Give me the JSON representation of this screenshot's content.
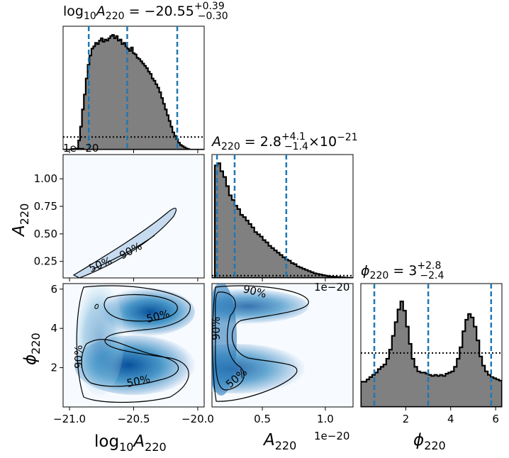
{
  "chart_data": {
    "type": "corner",
    "parameters": [
      {
        "key": "logA",
        "label_base": "log",
        "label_sub": "10",
        "label_var": "A",
        "label_varsub": "220"
      },
      {
        "key": "A",
        "label_var": "A",
        "label_varsub": "220"
      },
      {
        "key": "phi",
        "label_var": "ϕ",
        "label_varsub": "220"
      }
    ],
    "titles": {
      "logA": {
        "prefix": "log",
        "prefix_sub": "10",
        "var": "A",
        "var_sub": "220",
        "eq": " = −20.55",
        "sup": "+0.39",
        "sub": "−0.30"
      },
      "A": {
        "var": "A",
        "var_sub": "220",
        "eq": " = 2.8",
        "sup": "+4.1",
        "sub": "−1.4",
        "tail": "×10",
        "tail_sup": "−21"
      },
      "phi": {
        "var": "ϕ",
        "var_sub": "220",
        "eq": " = 3",
        "sup": "+2.8",
        "sub": "−2.4"
      }
    },
    "ranges": {
      "logA": [
        -21.05,
        -19.95
      ],
      "A": [
        0.1,
        1.22
      ],
      "phi": [
        0.0,
        6.28
      ]
    },
    "quantiles": {
      "logA": [
        -20.85,
        -20.55,
        -20.16
      ],
      "A": [
        0.14,
        0.28,
        0.69
      ],
      "phi": [
        0.6,
        3.0,
        5.8
      ]
    },
    "ticks": {
      "logA_x": [
        {
          "v": -21.0,
          "t": "−21.0"
        },
        {
          "v": -20.5,
          "t": "−20.5"
        },
        {
          "v": -20.0,
          "t": "−20.0"
        }
      ],
      "A_x": [
        {
          "v": 0.5,
          "t": "0.5"
        },
        {
          "v": 1.0,
          "t": "1.0"
        }
      ],
      "A_y": [
        {
          "v": 0.25,
          "t": "0.25"
        },
        {
          "v": 0.5,
          "t": "0.50"
        },
        {
          "v": 0.75,
          "t": "0.75"
        },
        {
          "v": 1.0,
          "t": "1.00"
        }
      ],
      "phi_x": [
        {
          "v": 2,
          "t": "2"
        },
        {
          "v": 4,
          "t": "4"
        },
        {
          "v": 6,
          "t": "6"
        }
      ],
      "phi_y": [
        {
          "v": 2,
          "t": "2"
        },
        {
          "v": 4,
          "t": "4"
        },
        {
          "v": 6,
          "t": "6"
        }
      ]
    },
    "offset_texts": {
      "top_hist": "1e−20",
      "a_hist": "1e−20",
      "a_axis": "1e−20"
    },
    "contour_labels": [
      "50%",
      "90%"
    ],
    "histograms": {
      "logA": {
        "bins_start": -21.05,
        "bin_width": 0.0147,
        "counts": [
          0,
          0,
          0,
          0,
          0,
          0,
          0,
          0.01,
          0.08,
          0.2,
          0.35,
          0.48,
          0.62,
          0.74,
          0.82,
          0.88,
          0.9,
          0.93,
          0.92,
          0.95,
          0.97,
          0.94,
          0.96,
          0.95,
          0.97,
          0.99,
          1.0,
          0.97,
          0.99,
          0.95,
          0.96,
          0.92,
          0.93,
          0.9,
          0.88,
          0.86,
          0.89,
          0.84,
          0.83,
          0.8,
          0.79,
          0.77,
          0.75,
          0.73,
          0.71,
          0.68,
          0.66,
          0.62,
          0.6,
          0.57,
          0.54,
          0.5,
          0.45,
          0.4,
          0.35,
          0.3,
          0.25,
          0.2,
          0.15,
          0.12,
          0.09,
          0.06,
          0.04,
          0.03,
          0.02,
          0.01,
          0.005,
          0,
          0,
          0,
          0,
          0,
          0,
          0,
          0
        ],
        "prior_level": 0.11
      },
      "A": {
        "bins_start": 0.1,
        "bin_width": 0.0224,
        "counts": [
          0.0,
          0.98,
          1.0,
          0.93,
          0.88,
          0.8,
          0.72,
          0.68,
          0.63,
          0.6,
          0.55,
          0.53,
          0.5,
          0.47,
          0.44,
          0.4,
          0.38,
          0.36,
          0.33,
          0.31,
          0.28,
          0.26,
          0.24,
          0.22,
          0.2,
          0.18,
          0.16,
          0.15,
          0.13,
          0.12,
          0.1,
          0.09,
          0.08,
          0.07,
          0.06,
          0.05,
          0.04,
          0.035,
          0.03,
          0.025,
          0.02,
          0.015,
          0.012,
          0.01,
          0.008,
          0.006,
          0.004,
          0.003,
          0.002,
          0.001
        ],
        "prior_level": 0.02
      },
      "phi": {
        "bins_start": 0.0,
        "bin_width": 0.1256,
        "counts": [
          0.22,
          0.22,
          0.24,
          0.26,
          0.28,
          0.3,
          0.33,
          0.35,
          0.37,
          0.42,
          0.5,
          0.62,
          0.74,
          0.85,
          0.92,
          0.84,
          0.7,
          0.55,
          0.42,
          0.35,
          0.31,
          0.3,
          0.3,
          0.29,
          0.28,
          0.27,
          0.28,
          0.27,
          0.28,
          0.27,
          0.29,
          0.3,
          0.31,
          0.35,
          0.42,
          0.52,
          0.66,
          0.76,
          0.81,
          0.78,
          0.7,
          0.58,
          0.44,
          0.36,
          0.31,
          0.28,
          0.26,
          0.25,
          0.24,
          0.23
        ],
        "prior_level": 0.47
      }
    }
  }
}
